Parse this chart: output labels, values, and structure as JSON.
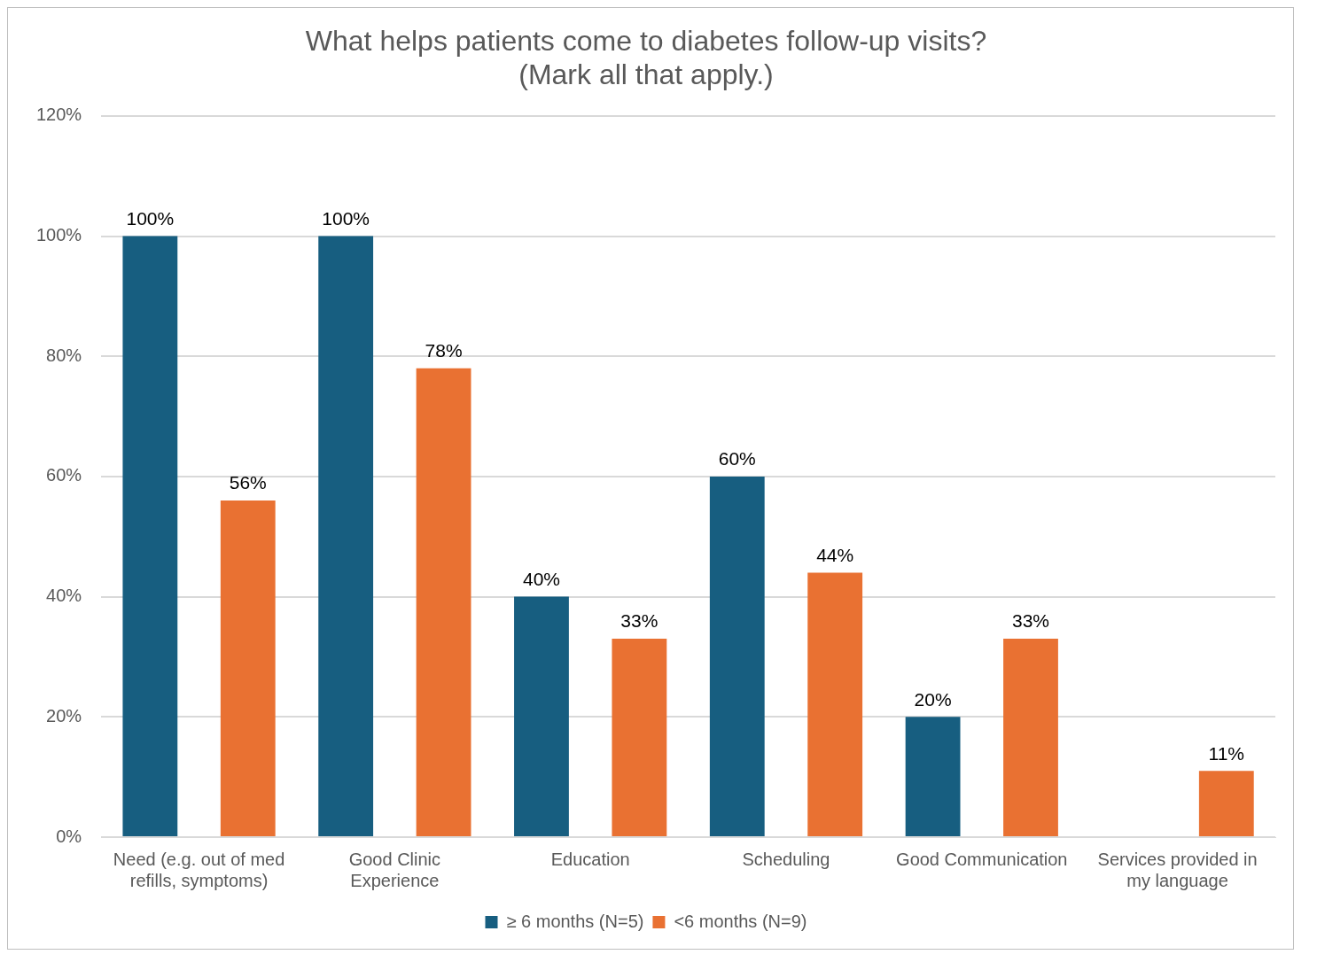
{
  "chart_data": {
    "type": "bar",
    "title": "What helps patients come to diabetes follow-up visits?\n(Mark all that apply.)",
    "categories": [
      "Need (e.g. out of med refills, symptoms)",
      "Good Clinic Experience",
      "Education",
      "Scheduling",
      "Good Communication",
      "Services provided in my language"
    ],
    "series": [
      {
        "name": "≥ 6 months (N=5)",
        "color": "#175e80",
        "values": [
          100,
          100,
          40,
          60,
          20,
          null
        ],
        "value_labels": [
          "100%",
          "100%",
          "40%",
          "60%",
          "20%",
          null
        ]
      },
      {
        "name": "<6 months (N=9)",
        "color": "#e97132",
        "values": [
          56,
          78,
          33,
          44,
          33,
          11
        ],
        "value_labels": [
          "56%",
          "78%",
          "33%",
          "44%",
          "33%",
          "11%"
        ]
      }
    ],
    "ylim": [
      0,
      120
    ],
    "yticks": [
      {
        "value": 0,
        "label": "0%"
      },
      {
        "value": 20,
        "label": "20%"
      },
      {
        "value": 40,
        "label": "40%"
      },
      {
        "value": 60,
        "label": "60%"
      },
      {
        "value": 80,
        "label": "80%"
      },
      {
        "value": 100,
        "label": "100%"
      },
      {
        "value": 120,
        "label": "120%"
      }
    ],
    "grid": "y",
    "legend": "bottom"
  }
}
